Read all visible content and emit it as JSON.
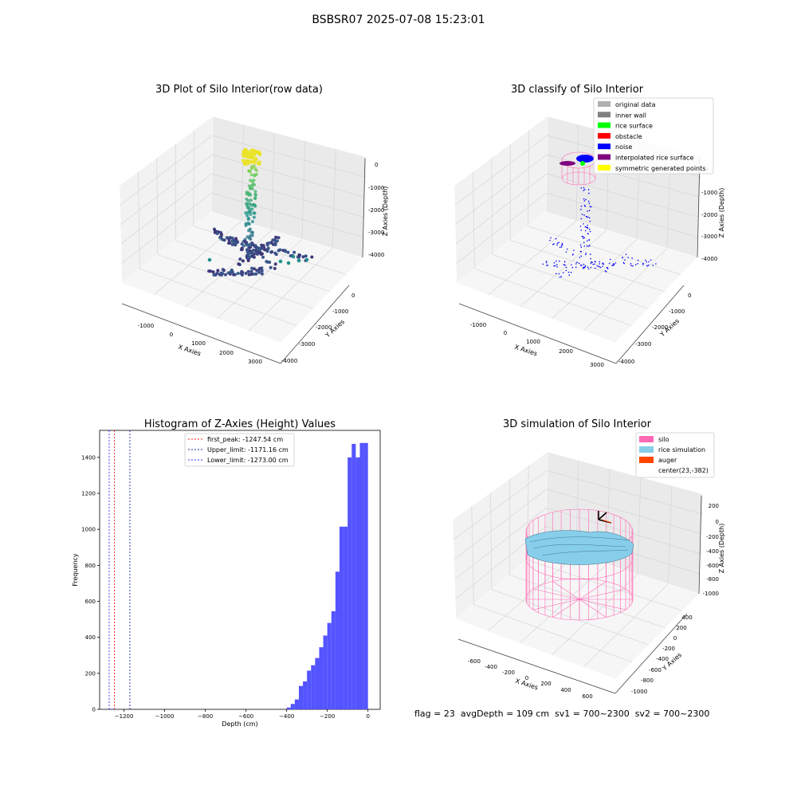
{
  "suptitle": "BSBSR07 2025-07-08 15:23:01",
  "status_line": "flag = 23  avgDepth = 109 cm  sv1 = 700~2300  sv2 = 700~2300",
  "colors": {
    "histogram": "#4b4bff",
    "first_peak": "#ff2020",
    "upper_limit": "#1e2aa0",
    "lower_limit": "#3333ff",
    "silo": "#ff69b4",
    "rice": "#87ceeb",
    "auger": "#ff4500",
    "noise": "#0000ff",
    "pane": "#f2f2f2",
    "grid": "#d6d6d6"
  },
  "chart_data": [
    {
      "type": "scatter",
      "title": "3D Plot of Silo Interior(row data)",
      "xlabel": "X Axies",
      "ylabel": "Y Axies",
      "zlabel": "Z Axies (Depth)",
      "xticks": [
        "-1000",
        "0",
        "1000",
        "2000",
        "3000"
      ],
      "yticks": [
        "0",
        "-1000",
        "-2000",
        "-3000",
        "-4000"
      ],
      "zticks": [
        "0",
        "-1000",
        "-2000",
        "-3000",
        "-4000"
      ],
      "xlim": [
        -1500,
        3300
      ],
      "ylim": [
        -4200,
        1000
      ],
      "zlim": [
        -4400,
        400
      ]
    },
    {
      "type": "scatter",
      "title": "3D classify of Silo Interior",
      "xlabel": "X Axies",
      "ylabel": "Y Axies",
      "zlabel": "Z Axies (Depth)",
      "xticks": [
        "-1000",
        "0",
        "1000",
        "2000",
        "3000"
      ],
      "yticks": [
        "0",
        "-1000",
        "-2000",
        "-3000",
        "-4000"
      ],
      "zticks": [
        "0",
        "-1000",
        "-2000",
        "-3000",
        "-4000"
      ],
      "xlim": [
        -1500,
        3300
      ],
      "ylim": [
        -4200,
        1000
      ],
      "zlim": [
        -4400,
        400
      ],
      "legend_position": "top-right",
      "legend": [
        {
          "label": "original data",
          "color": "#b0b0b0"
        },
        {
          "label": "inner wall",
          "color": "#808080"
        },
        {
          "label": "rice surface",
          "color": "#00ff00"
        },
        {
          "label": "obstacle",
          "color": "#ff0000"
        },
        {
          "label": "noise",
          "color": "#0000ff"
        },
        {
          "label": "interpolated rice surface",
          "color": "#800080"
        },
        {
          "label": "symmetric generated points",
          "color": "#ffff00"
        }
      ]
    },
    {
      "type": "bar",
      "title": "Histogram of Z-Axies (Height) Values",
      "xlabel": "Depth (cm)",
      "ylabel": "Frequency",
      "xlim": [
        -1320,
        60
      ],
      "ylim": [
        0,
        1550
      ],
      "xticks": [
        -1200,
        -1000,
        -800,
        -600,
        -400,
        -200,
        0
      ],
      "xtick_labels": [
        "−1200",
        "−1000",
        "−800",
        "−600",
        "−400",
        "−200",
        "0"
      ],
      "yticks": [
        0,
        200,
        400,
        600,
        800,
        1000,
        1200,
        1400
      ],
      "bins": {
        "edges": [
          -400,
          -380,
          -360,
          -340,
          -320,
          -300,
          -280,
          -260,
          -240,
          -220,
          -200,
          -180,
          -160,
          -140,
          -120,
          -100,
          -80,
          -60,
          -40,
          -20,
          0
        ],
        "values": [
          10,
          30,
          55,
          130,
          155,
          215,
          245,
          285,
          345,
          410,
          480,
          545,
          765,
          1015,
          1015,
          1400,
          1475,
          1400,
          1480,
          1480
        ]
      },
      "outlier_bin": {
        "x0": -1265,
        "x1": -1250,
        "value": 3
      },
      "vlines": [
        {
          "x": -1247.54,
          "label": "first_peak: -1247.54 cm",
          "color": "#ff2020"
        },
        {
          "x": -1171.16,
          "label": "Upper_limit: -1171.16 cm",
          "color": "#1e2aa0"
        },
        {
          "x": -1273.0,
          "label": "Lower_limit: -1273.00 cm",
          "color": "#3333ff"
        }
      ],
      "legend_position": "top-center"
    },
    {
      "type": "scatter",
      "title": "3D simulation of Silo Interior",
      "xlabel": "X Axies",
      "ylabel": "Y Axies",
      "zlabel": "Z Axies (Depth)",
      "xticks": [
        "-600",
        "-400",
        "-200",
        "0",
        "200",
        "400",
        "600"
      ],
      "yticks": [
        "400",
        "200",
        "0",
        "-200",
        "-400",
        "-600",
        "-800",
        "-1000"
      ],
      "zticks": [
        "200",
        "0",
        "-200",
        "-400",
        "-600",
        "-800",
        "-1000"
      ],
      "legend_position": "top-right",
      "legend": [
        {
          "label": "silo",
          "color": "#ff69b4"
        },
        {
          "label": "rice simulation",
          "color": "#87ceeb"
        },
        {
          "label": "auger",
          "color": "#ff4500"
        },
        {
          "label": "center(23,-382)",
          "color": null
        }
      ]
    }
  ]
}
